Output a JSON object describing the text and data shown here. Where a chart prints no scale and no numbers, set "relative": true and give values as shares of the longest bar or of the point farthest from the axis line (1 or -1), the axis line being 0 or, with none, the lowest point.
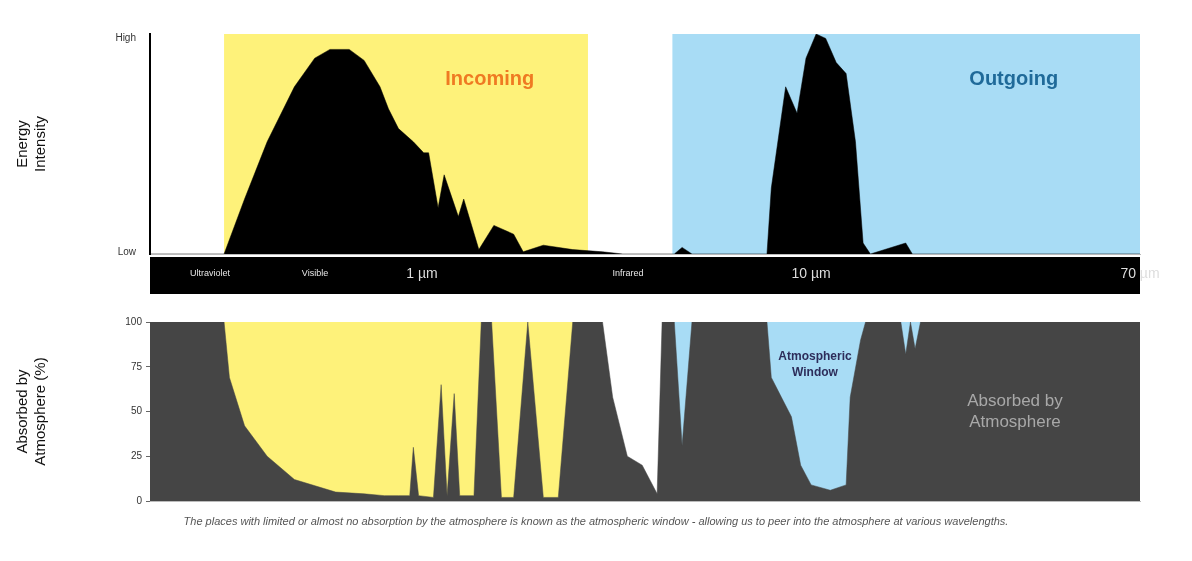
{
  "chart_data": [
    {
      "type": "area",
      "ylabel": "Energy Intensity",
      "log": "x",
      "relative": true,
      "xlim": [
        0.2,
        70
      ],
      "xticks": [
        {
          "value": 1,
          "label": "1 µm"
        },
        {
          "value": 10,
          "label": "10 µm"
        },
        {
          "value": 70,
          "label": "70 µm"
        }
      ],
      "series": [
        {
          "color": "#000000",
          "x": [
            0.2,
            0.31,
            0.35,
            0.4,
            0.47,
            0.53,
            0.58,
            0.65,
            0.71,
            0.78,
            0.82,
            0.87,
            0.95,
            1.01,
            1.04,
            1.1,
            1.14,
            1.24,
            1.28,
            1.4,
            1.53,
            1.72,
            1.82,
            2.05,
            2.44,
            2.91,
            3.28,
            4.45,
            4.66,
            4.94,
            7.7,
            7.9,
            8.6,
            9.2,
            9.7,
            10.3,
            10.9,
            11.6,
            12.3,
            13.0,
            13.6,
            14.2,
            17.5,
            18.2,
            70
          ],
          "values": [
            0,
            0,
            0.25,
            0.51,
            0.76,
            0.89,
            0.93,
            0.93,
            0.88,
            0.76,
            0.66,
            0.57,
            0.51,
            0.46,
            0.46,
            0.21,
            0.36,
            0.17,
            0.25,
            0.02,
            0.13,
            0.09,
            0.01,
            0.04,
            0.02,
            0.01,
            0,
            0,
            0.03,
            0,
            0,
            0.3,
            0.76,
            0.64,
            0.89,
            1,
            0.98,
            0.87,
            0.82,
            0.51,
            0.05,
            0,
            0.05,
            0,
            0
          ]
        }
      ],
      "bands": [
        {
          "axis": "x",
          "from": 0.31,
          "to": 2.67,
          "label": "Incoming",
          "color": "#fef27a"
        },
        {
          "axis": "x",
          "from": 4.4,
          "to": 70,
          "label": "Outgoing",
          "color": "#a8dcf5"
        }
      ],
      "annotations": [
        "Low",
        "High",
        "Ultraviolet",
        "Visible",
        "Infrared"
      ],
      "grid": false
    },
    {
      "type": "area",
      "ylabel": "Absorbed by Atmosphere (%)",
      "log": "x",
      "xlim": [
        0.2,
        70
      ],
      "ylim": [
        0,
        100
      ],
      "yticks": [
        0,
        25,
        50,
        75,
        100
      ],
      "tick_labels": "y",
      "series": [
        {
          "color": "#454545",
          "x": [
            0.2,
            0.31,
            0.32,
            0.35,
            0.4,
            0.47,
            0.6,
            0.71,
            0.8,
            0.87,
            0.93,
            0.95,
            0.98,
            1.07,
            1.12,
            1.16,
            1.21,
            1.25,
            1.36,
            1.42,
            1.51,
            1.6,
            1.72,
            1.87,
            2.05,
            2.24,
            2.44,
            2.67,
            2.91,
            3.09,
            3.37,
            3.68,
            4.02,
            4.14,
            4.45,
            4.66,
            4.94,
            5.24,
            7.7,
            7.9,
            8.9,
            9.4,
            10,
            11.2,
            12.3,
            12.6,
            13.4,
            13.8,
            17,
            17.5,
            18,
            18.5,
            19.1,
            70
          ],
          "values": [
            100,
            100,
            69,
            42,
            25,
            12,
            5,
            4,
            3,
            3,
            3,
            30,
            3,
            2,
            65,
            3,
            60,
            3,
            3,
            100,
            100,
            2,
            2,
            100,
            2,
            2,
            100,
            100,
            100,
            58,
            25,
            20,
            4,
            100,
            100,
            31,
            100,
            100,
            100,
            69,
            47,
            20,
            9,
            6,
            9,
            58,
            90,
            100,
            100,
            82,
            100,
            85,
            100,
            100
          ]
        }
      ],
      "bands": [
        {
          "axis": "x",
          "from": 0.31,
          "to": 2.67,
          "color": "#fef27a"
        },
        {
          "axis": "x",
          "from": 4.4,
          "to": 70,
          "color": "#a8dcf5"
        }
      ],
      "annotations": [
        "Atmospheric Window",
        "Absorbed by Atmosphere",
        "The places with limited or almost no absorption by the atmosphere is known as the atmospheric window - allowing us to peer into the atmosphere at various wavelengths."
      ],
      "grid": false
    }
  ]
}
